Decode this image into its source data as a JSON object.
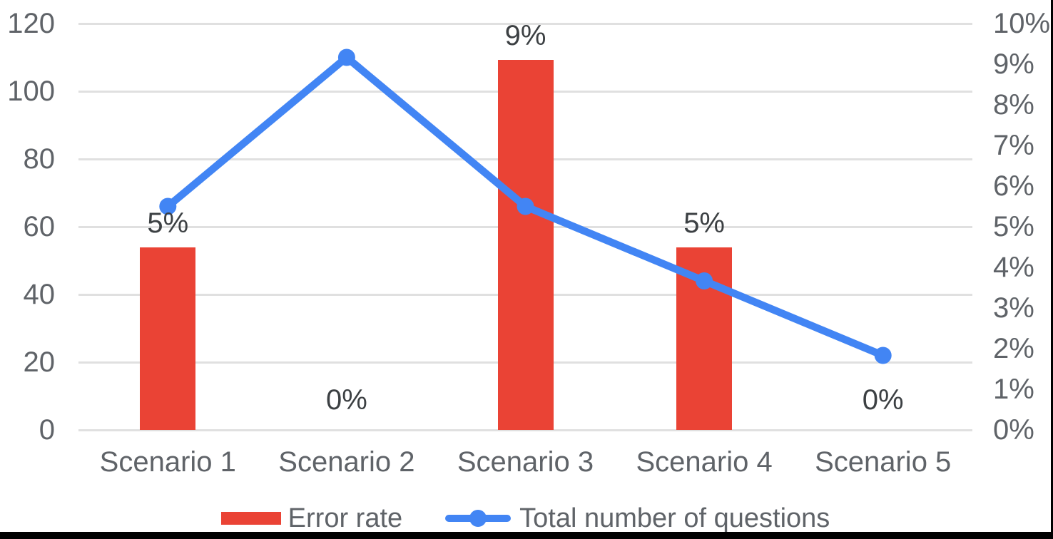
{
  "chart_data": {
    "type": "combo_bar_line",
    "categories": [
      "Scenario 1",
      "Scenario 2",
      "Scenario 3",
      "Scenario 4",
      "Scenario 5"
    ],
    "series": [
      {
        "name": "Error rate",
        "type": "bar",
        "axis": "right",
        "values_percent": [
          4.5,
          0,
          9.1,
          4.5,
          0
        ],
        "data_labels": [
          "5%",
          "0%",
          "9%",
          "5%",
          "0%"
        ],
        "color": "#EA4335"
      },
      {
        "name": "Total number of questions",
        "type": "line",
        "axis": "left",
        "values": [
          66,
          110,
          66,
          44,
          22
        ],
        "color": "#4285F4"
      }
    ],
    "left_axis": {
      "min": 0,
      "max": 120,
      "tick_step": 20,
      "ticks": [
        "120",
        "100",
        "80",
        "60",
        "40",
        "20",
        "0"
      ]
    },
    "right_axis": {
      "min": 0,
      "max": 10,
      "tick_step": 1,
      "ticks": [
        "10%",
        "9%",
        "8%",
        "7%",
        "6%",
        "5%",
        "4%",
        "3%",
        "2%",
        "1%",
        "0%"
      ]
    },
    "grid": true,
    "legend_position": "bottom",
    "title": ""
  },
  "colors": {
    "background": "#ffffff",
    "grid": "#e0e0e0",
    "axis_text": "#5f6368",
    "data_label_text": "#3c4043",
    "bar": "#EA4335",
    "line": "#4285F4",
    "screen_edge": "#000000"
  }
}
